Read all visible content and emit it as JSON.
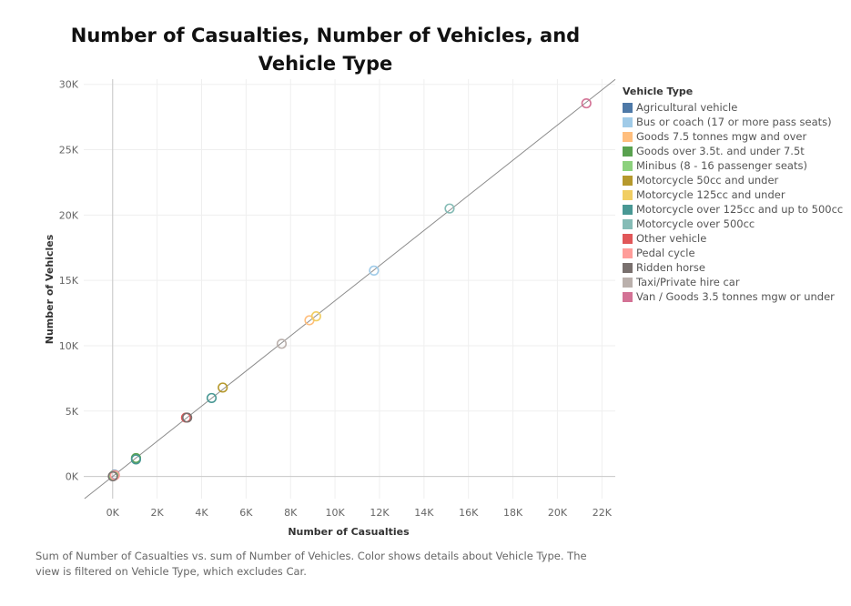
{
  "chart_data": {
    "type": "scatter",
    "title": "Number of Casualties, Number of Vehicles, and Vehicle Type",
    "xlabel": "Number of Casualties",
    "ylabel": "Number of Vehicles",
    "xlim": [
      -1300,
      22600
    ],
    "ylim": [
      -1700,
      30400
    ],
    "x_ticks": [
      0,
      2000,
      4000,
      6000,
      8000,
      10000,
      12000,
      14000,
      16000,
      18000,
      20000,
      22000
    ],
    "x_tick_labels": [
      "0K",
      "2K",
      "4K",
      "6K",
      "8K",
      "10K",
      "12K",
      "14K",
      "16K",
      "18K",
      "20K",
      "22K"
    ],
    "y_ticks": [
      0,
      5000,
      10000,
      15000,
      20000,
      25000,
      30000
    ],
    "y_tick_labels": [
      "0K",
      "5K",
      "10K",
      "15K",
      "20K",
      "25K",
      "30K"
    ],
    "grid": true,
    "trend_line": true,
    "legend_title": "Vehicle Type",
    "legend_position": "right",
    "series": [
      {
        "name": "Agricultural vehicle",
        "color": "#4e79a7",
        "x": 90,
        "y": 130
      },
      {
        "name": "Bus or coach (17 or more pass seats)",
        "color": "#a0cbe8",
        "x": 11750,
        "y": 15750
      },
      {
        "name": "Goods 7.5 tonnes mgw and over",
        "color": "#ffbe7d",
        "x": 8850,
        "y": 11950
      },
      {
        "name": "Goods over 3.5t. and under 7.5t",
        "color": "#59a14f",
        "x": 1050,
        "y": 1400
      },
      {
        "name": "Minibus (8 - 16 passenger seats)",
        "color": "#8cd17d",
        "x": 40,
        "y": 60
      },
      {
        "name": "Motorcycle 50cc and under",
        "color": "#b6992d",
        "x": 4950,
        "y": 6800
      },
      {
        "name": "Motorcycle 125cc and under",
        "color": "#f1ce63",
        "x": 9150,
        "y": 12250
      },
      {
        "name": "Motorcycle over 125cc and up to 500cc",
        "color": "#499894",
        "x": 4450,
        "y": 6000
      },
      {
        "name": "Motorcycle over 500cc",
        "color": "#86bcb6",
        "x": 15150,
        "y": 20500
      },
      {
        "name": "Other vehicle",
        "color": "#e15759",
        "x": 3300,
        "y": 4500
      },
      {
        "name": "Pedal cycle",
        "color": "#ff9d9a",
        "x": 100,
        "y": 90
      },
      {
        "name": "Ridden horse",
        "color": "#79706e",
        "x": 10,
        "y": 10
      },
      {
        "name": "Taxi/Private hire car",
        "color": "#bab0ac",
        "x": 7600,
        "y": 10150
      },
      {
        "name": "Van / Goods 3.5 tonnes mgw or under",
        "color": "#d37295",
        "x": 21300,
        "y": 28550
      },
      {
        "name": "Motorcycle over 125cc and up to 500cc",
        "color": "#499894",
        "x": 1050,
        "y": 1300
      },
      {
        "name": "Ridden horse",
        "color": "#79706e",
        "x": 3350,
        "y": 4500
      }
    ]
  },
  "caption": "Sum of Number of Casualties vs. sum of Number of Vehicles.  Color shows details about Vehicle Type. The view is filtered on Vehicle Type, which excludes Car."
}
